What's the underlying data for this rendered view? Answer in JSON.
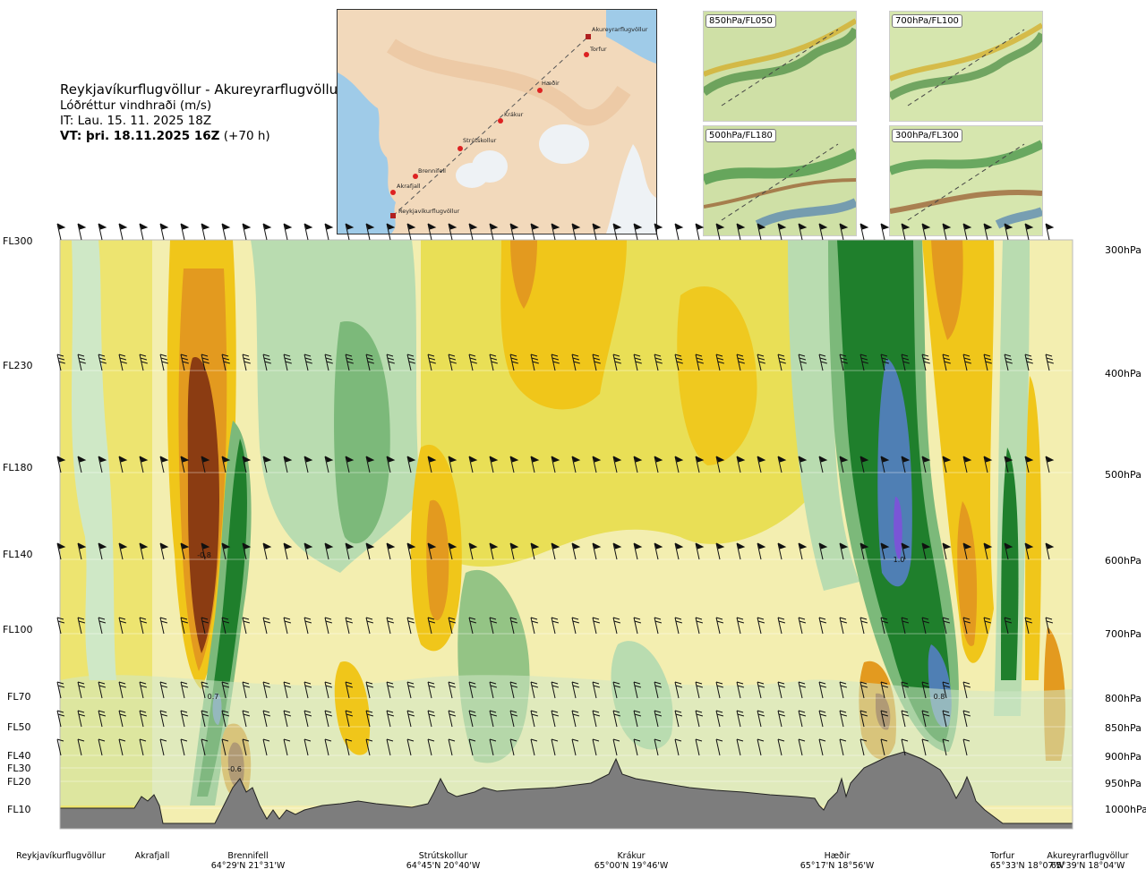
{
  "title": {
    "route": "Reykjavíkurflugvöllur - Akureyrarflugvöllur",
    "parameter": "Lóðréttur vindhraði (m/s)",
    "issue_time": "IT: Lau. 15. 11. 2025 18Z",
    "valid_time": "VT: þri. 18.11.2025 16Z",
    "lead_time": "(+70 h)"
  },
  "flight_levels": [
    "FL300",
    "FL230",
    "FL180",
    "FL140",
    "FL100",
    "FL70",
    "FL50",
    "FL40",
    "FL30",
    "FL20",
    "FL10"
  ],
  "pressure_levels": [
    "300hPa",
    "400hPa",
    "500hPa",
    "600hPa",
    "700hPa",
    "800hPa",
    "850hPa",
    "900hPa",
    "950hPa",
    "1000hPa"
  ],
  "locations": [
    {
      "name": "Reykjavíkurflugvöllur",
      "coords": ""
    },
    {
      "name": "Akrafjall",
      "coords": ""
    },
    {
      "name": "Brennifell",
      "coords": "64°29'N 21°31'W"
    },
    {
      "name": "Strútskollur",
      "coords": "64°45'N 20°40'W"
    },
    {
      "name": "Krákur",
      "coords": "65°00'N 19°46'W"
    },
    {
      "name": "Hæðir",
      "coords": "65°17'N 18°56'W"
    },
    {
      "name": "Torfur",
      "coords": "65°33'N 18°07'W"
    },
    {
      "name": "Akureyrarflugvöllur",
      "coords": "65°39'N 18°04'W"
    }
  ],
  "map_points": [
    "Akureyrarflugvöllur",
    "Torfur",
    "Hæðir",
    "Krákur",
    "Strútskollur",
    "Brennifell",
    "Akrafjall",
    "Reykjavíkurflugvöllur"
  ],
  "mini_maps": [
    "850hPa/FL050",
    "700hPa/FL100",
    "500hPa/FL180",
    "300hPa/FL300"
  ],
  "value_labels": [
    "-0.8",
    "1.0",
    "0.7",
    "0.8",
    "-0.6"
  ],
  "colors": {
    "strong_down": "#8b3c12",
    "down": "#e39a1f",
    "weak_down": "#eedc3a",
    "neutral": "#f5efb5",
    "weak_up": "#cfe8c6",
    "up": "#7cb97a",
    "strong_up": "#1f7f2c",
    "very_strong_up": "#4f7fb4",
    "extreme_up": "#7a55d6",
    "terrain": "#7d7d7d"
  }
}
